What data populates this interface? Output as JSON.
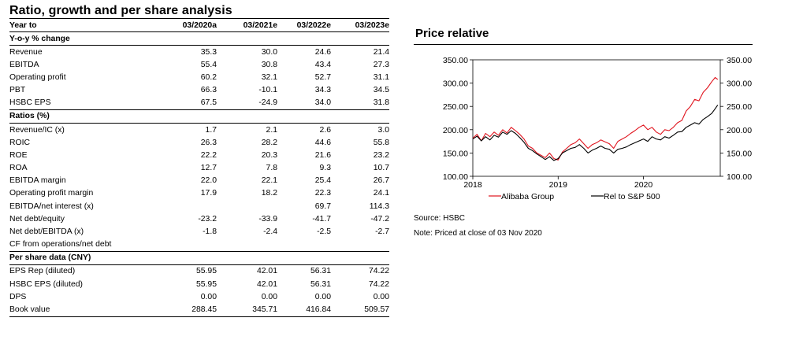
{
  "table_title": "Ratio, growth and per share analysis",
  "columns": [
    "Year to",
    "03/2020a",
    "03/2021e",
    "03/2022e",
    "03/2023e"
  ],
  "sections": [
    {
      "title": "Y-o-y % change",
      "rows": [
        {
          "label": "Revenue",
          "values": [
            "35.3",
            "30.0",
            "24.6",
            "21.4"
          ]
        },
        {
          "label": "EBITDA",
          "values": [
            "55.4",
            "30.8",
            "43.4",
            "27.3"
          ]
        },
        {
          "label": "Operating profit",
          "values": [
            "60.2",
            "32.1",
            "52.7",
            "31.1"
          ]
        },
        {
          "label": "PBT",
          "values": [
            "66.3",
            "-10.1",
            "34.3",
            "34.5"
          ]
        },
        {
          "label": "HSBC EPS",
          "values": [
            "67.5",
            "-24.9",
            "34.0",
            "31.8"
          ]
        }
      ]
    },
    {
      "title": "Ratios (%)",
      "rows": [
        {
          "label": "Revenue/IC (x)",
          "values": [
            "1.7",
            "2.1",
            "2.6",
            "3.0"
          ]
        },
        {
          "label": "ROIC",
          "values": [
            "26.3",
            "28.2",
            "44.6",
            "55.8"
          ]
        },
        {
          "label": "ROE",
          "values": [
            "22.2",
            "20.3",
            "21.6",
            "23.2"
          ]
        },
        {
          "label": "ROA",
          "values": [
            "12.7",
            "7.8",
            "9.3",
            "10.7"
          ]
        },
        {
          "label": "EBITDA margin",
          "values": [
            "22.0",
            "22.1",
            "25.4",
            "26.7"
          ]
        },
        {
          "label": "Operating profit margin",
          "values": [
            "17.9",
            "18.2",
            "22.3",
            "24.1"
          ]
        },
        {
          "label": "EBITDA/net interest (x)",
          "values": [
            "",
            "",
            "69.7",
            "114.3"
          ]
        },
        {
          "label": "Net debt/equity",
          "values": [
            "-23.2",
            "-33.9",
            "-41.7",
            "-47.2"
          ]
        },
        {
          "label": "Net debt/EBITDA (x)",
          "values": [
            "-1.8",
            "-2.4",
            "-2.5",
            "-2.7"
          ]
        },
        {
          "label": "CF from operations/net debt",
          "values": [
            "",
            "",
            "",
            ""
          ]
        }
      ]
    },
    {
      "title": "Per share data (CNY)",
      "rows": [
        {
          "label": "EPS Rep (diluted)",
          "values": [
            "55.95",
            "42.01",
            "56.31",
            "74.22"
          ]
        },
        {
          "label": "HSBC EPS (diluted)",
          "values": [
            "55.95",
            "42.01",
            "56.31",
            "74.22"
          ]
        },
        {
          "label": "DPS",
          "values": [
            "0.00",
            "0.00",
            "0.00",
            "0.00"
          ]
        },
        {
          "label": "Book value",
          "values": [
            "288.45",
            "345.71",
            "416.84",
            "509.57"
          ]
        }
      ]
    }
  ],
  "chart_title": "Price relative",
  "source": "Source: HSBC",
  "note": "Note: Priced at close of  03 Nov 2020",
  "colors": {
    "alibaba": "#e0141e",
    "rel": "#000000"
  },
  "chart_data": {
    "type": "line",
    "ylim": [
      100,
      350
    ],
    "y_ticks": [
      "100.00",
      "150.00",
      "200.00",
      "250.00",
      "300.00",
      "350.00"
    ],
    "x_ticks": [
      {
        "label": "2018",
        "x": 2018.0
      },
      {
        "label": "2019",
        "x": 2019.0
      },
      {
        "label": "2020",
        "x": 2020.0
      }
    ],
    "xlim": [
      2018.0,
      2020.9
    ],
    "legend_position": "bottom",
    "series": [
      {
        "name": "Alibaba Group",
        "points": [
          [
            2018.0,
            182
          ],
          [
            2018.05,
            190
          ],
          [
            2018.1,
            176
          ],
          [
            2018.15,
            192
          ],
          [
            2018.2,
            185
          ],
          [
            2018.25,
            195
          ],
          [
            2018.3,
            188
          ],
          [
            2018.35,
            200
          ],
          [
            2018.4,
            193
          ],
          [
            2018.45,
            205
          ],
          [
            2018.5,
            198
          ],
          [
            2018.55,
            190
          ],
          [
            2018.6,
            180
          ],
          [
            2018.65,
            165
          ],
          [
            2018.7,
            160
          ],
          [
            2018.75,
            150
          ],
          [
            2018.8,
            145
          ],
          [
            2018.85,
            140
          ],
          [
            2018.9,
            150
          ],
          [
            2018.95,
            138
          ],
          [
            2019.0,
            135
          ],
          [
            2019.05,
            152
          ],
          [
            2019.1,
            160
          ],
          [
            2019.15,
            168
          ],
          [
            2019.2,
            172
          ],
          [
            2019.25,
            180
          ],
          [
            2019.3,
            170
          ],
          [
            2019.35,
            160
          ],
          [
            2019.4,
            168
          ],
          [
            2019.45,
            172
          ],
          [
            2019.5,
            178
          ],
          [
            2019.55,
            174
          ],
          [
            2019.6,
            170
          ],
          [
            2019.65,
            160
          ],
          [
            2019.7,
            175
          ],
          [
            2019.75,
            180
          ],
          [
            2019.8,
            185
          ],
          [
            2019.85,
            192
          ],
          [
            2019.9,
            198
          ],
          [
            2019.95,
            205
          ],
          [
            2020.0,
            210
          ],
          [
            2020.05,
            200
          ],
          [
            2020.1,
            205
          ],
          [
            2020.15,
            195
          ],
          [
            2020.2,
            190
          ],
          [
            2020.25,
            200
          ],
          [
            2020.3,
            198
          ],
          [
            2020.35,
            205
          ],
          [
            2020.4,
            215
          ],
          [
            2020.45,
            220
          ],
          [
            2020.5,
            240
          ],
          [
            2020.55,
            250
          ],
          [
            2020.6,
            265
          ],
          [
            2020.65,
            262
          ],
          [
            2020.7,
            280
          ],
          [
            2020.75,
            290
          ],
          [
            2020.8,
            303
          ],
          [
            2020.84,
            312
          ],
          [
            2020.87,
            308
          ]
        ]
      },
      {
        "name": "Rel to S&P 500",
        "points": [
          [
            2018.0,
            180
          ],
          [
            2018.05,
            186
          ],
          [
            2018.1,
            176
          ],
          [
            2018.15,
            185
          ],
          [
            2018.2,
            178
          ],
          [
            2018.25,
            188
          ],
          [
            2018.3,
            184
          ],
          [
            2018.35,
            195
          ],
          [
            2018.4,
            190
          ],
          [
            2018.45,
            198
          ],
          [
            2018.5,
            192
          ],
          [
            2018.55,
            183
          ],
          [
            2018.6,
            173
          ],
          [
            2018.65,
            160
          ],
          [
            2018.7,
            155
          ],
          [
            2018.75,
            148
          ],
          [
            2018.8,
            142
          ],
          [
            2018.85,
            136
          ],
          [
            2018.9,
            142
          ],
          [
            2018.95,
            134
          ],
          [
            2019.0,
            138
          ],
          [
            2019.05,
            150
          ],
          [
            2019.1,
            155
          ],
          [
            2019.15,
            160
          ],
          [
            2019.2,
            162
          ],
          [
            2019.25,
            168
          ],
          [
            2019.3,
            160
          ],
          [
            2019.35,
            150
          ],
          [
            2019.4,
            156
          ],
          [
            2019.45,
            160
          ],
          [
            2019.5,
            165
          ],
          [
            2019.55,
            160
          ],
          [
            2019.6,
            158
          ],
          [
            2019.65,
            150
          ],
          [
            2019.7,
            158
          ],
          [
            2019.75,
            160
          ],
          [
            2019.8,
            163
          ],
          [
            2019.85,
            168
          ],
          [
            2019.9,
            172
          ],
          [
            2019.95,
            176
          ],
          [
            2020.0,
            180
          ],
          [
            2020.05,
            175
          ],
          [
            2020.1,
            185
          ],
          [
            2020.15,
            180
          ],
          [
            2020.2,
            178
          ],
          [
            2020.25,
            185
          ],
          [
            2020.3,
            182
          ],
          [
            2020.35,
            188
          ],
          [
            2020.4,
            195
          ],
          [
            2020.45,
            196
          ],
          [
            2020.5,
            205
          ],
          [
            2020.55,
            210
          ],
          [
            2020.6,
            215
          ],
          [
            2020.65,
            212
          ],
          [
            2020.7,
            222
          ],
          [
            2020.75,
            228
          ],
          [
            2020.8,
            235
          ],
          [
            2020.84,
            245
          ],
          [
            2020.87,
            253
          ]
        ]
      }
    ]
  }
}
